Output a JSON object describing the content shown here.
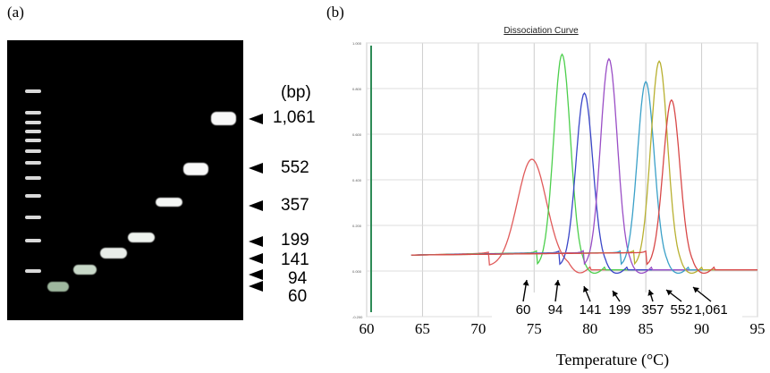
{
  "panels": {
    "a_label": "(a)",
    "b_label": "(b)"
  },
  "gel": {
    "unit_label": "(bp)",
    "size_labels": [
      "1,061",
      "552",
      "357",
      "199",
      "141",
      "94",
      "60"
    ]
  },
  "chart_data": {
    "type": "line",
    "title": "Dissociation Curve",
    "xlabel": "Temperature (°C)",
    "ylabel": "",
    "xlim": [
      60,
      95
    ],
    "ylim": [
      -0.2,
      1.0
    ],
    "x_ticks": [
      "60",
      "65",
      "70",
      "75",
      "80",
      "85",
      "90",
      "95"
    ],
    "y_ticks": [
      "1.000",
      "0.800",
      "0.600",
      "0.400",
      "0.200",
      "0.000",
      "-0.200"
    ],
    "grid": true,
    "peak_labels": [
      "60",
      "94",
      "141",
      "199",
      "357",
      "552",
      "1,061"
    ],
    "series": [
      {
        "color": "#e05a5a",
        "peak": 74.8,
        "height": 0.47
      },
      {
        "color": "#4ccf4c",
        "peak": 77.5,
        "height": 0.93
      },
      {
        "color": "#3a46c8",
        "peak": 79.5,
        "height": 0.76
      },
      {
        "color": "#9a4ec6",
        "peak": 81.7,
        "height": 0.91
      },
      {
        "color": "#3aa0c8",
        "peak": 85.0,
        "height": 0.81
      },
      {
        "color": "#b8b030",
        "peak": 86.2,
        "height": 0.9
      },
      {
        "color": "#d84848",
        "peak": 87.3,
        "height": 0.73
      }
    ]
  }
}
